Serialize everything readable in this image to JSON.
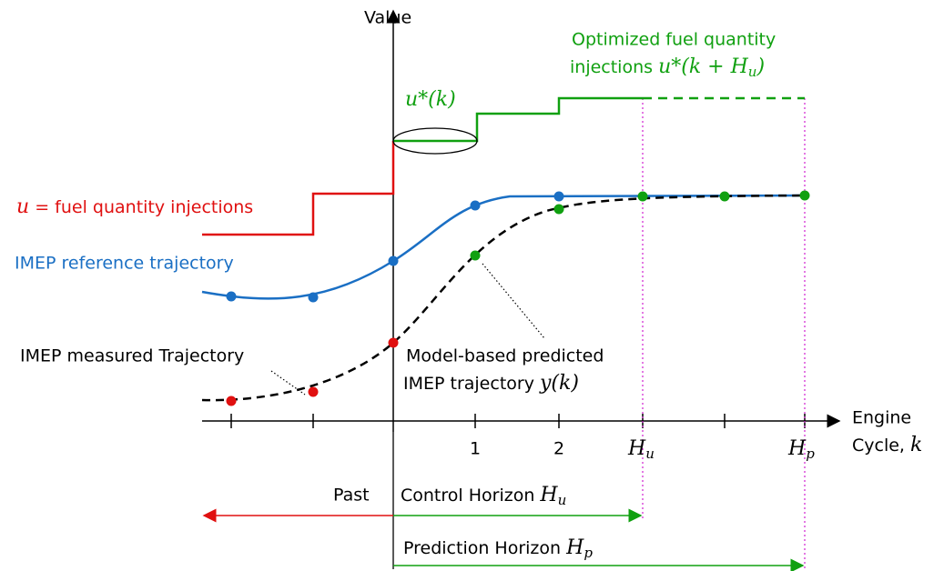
{
  "labels": {
    "value_axis": "Value",
    "engine_axis": [
      "Engine",
      "Cycle,",
      "k"
    ],
    "optimized": [
      "Optimized fuel quantity",
      "injections",
      "u*(k + H",
      "u",
      ")"
    ],
    "u_star": "u*(k)",
    "u_def": [
      "u",
      "= fuel quantity injections"
    ],
    "reference": "IMEP reference trajectory",
    "measured": "IMEP measured Trajectory",
    "predicted": [
      "Model-based predicted",
      "IMEP trajectory",
      "y(k)"
    ],
    "ticks": [
      "1",
      "2"
    ],
    "hu": [
      "H",
      "u"
    ],
    "hp": [
      "H",
      "p"
    ],
    "past": "Past",
    "control": [
      "Control Horizon",
      "H",
      "u"
    ],
    "prediction": [
      "Prediction Horizon",
      "H",
      "p"
    ]
  }
}
